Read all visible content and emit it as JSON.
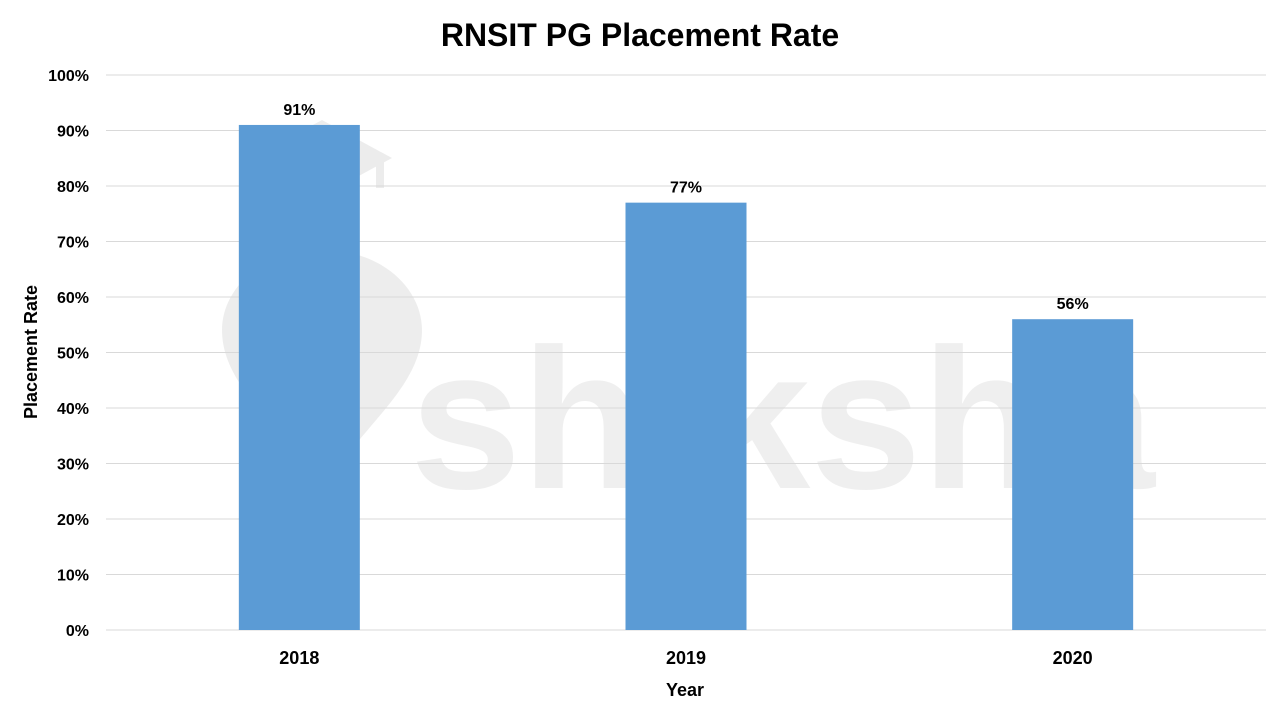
{
  "chart_data": {
    "type": "bar",
    "title": "RNSIT PG Placement Rate",
    "xlabel": "Year",
    "ylabel": "Placement Rate",
    "categories": [
      "2018",
      "2019",
      "2020"
    ],
    "values": [
      91,
      77,
      56
    ],
    "data_labels": [
      "91%",
      "77%",
      "56%"
    ],
    "ylim": [
      0,
      100
    ],
    "yticks": [
      0,
      10,
      20,
      30,
      40,
      50,
      60,
      70,
      80,
      90,
      100
    ],
    "ytick_labels": [
      "0%",
      "10%",
      "20%",
      "30%",
      "40%",
      "50%",
      "60%",
      "70%",
      "80%",
      "90%",
      "100%"
    ],
    "grid": true,
    "legend": "none",
    "bar_color": "#5b9bd5"
  },
  "watermark": {
    "text": "shiksha",
    "icon": "graduation-cap-pen-logo"
  }
}
